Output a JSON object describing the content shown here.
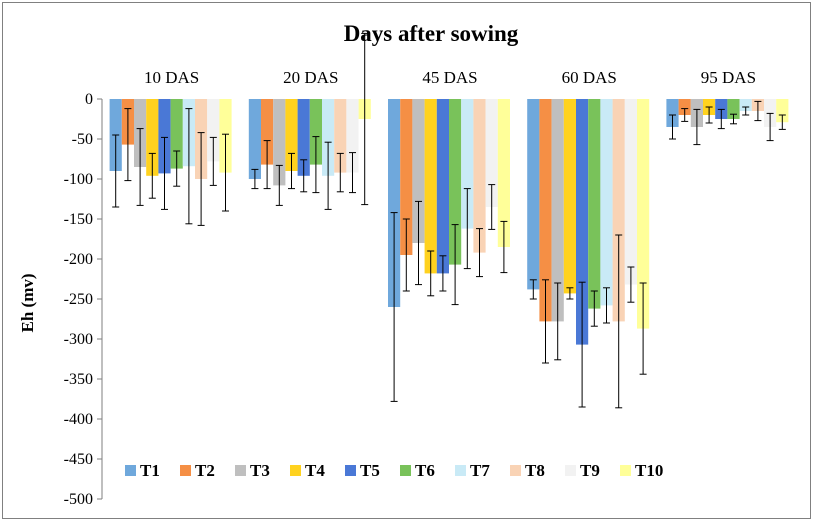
{
  "chart_data": {
    "type": "bar",
    "title": "Days after sowing",
    "ylabel": "Eh (mv)",
    "xlabel": "",
    "ylim": [
      -500,
      0
    ],
    "yticks": [
      0,
      -50,
      -100,
      -150,
      -200,
      -250,
      -300,
      -350,
      -400,
      -450,
      -500
    ],
    "category_position": "top",
    "legend_position": "bottom-left",
    "grid": false,
    "categories": [
      "10 DAS",
      "20 DAS",
      "45 DAS",
      "60 DAS",
      "95 DAS"
    ],
    "series": [
      {
        "name": "T1",
        "color": "#6FA8DC",
        "values": [
          -90,
          -100,
          -260,
          -238,
          -35
        ],
        "errors": [
          45,
          12,
          118,
          12,
          15
        ]
      },
      {
        "name": "T2",
        "color": "#F58F45",
        "values": [
          -57,
          -82,
          -195,
          -278,
          -20
        ],
        "errors": [
          45,
          30,
          45,
          52,
          8
        ]
      },
      {
        "name": "T3",
        "color": "#BFBFBF",
        "values": [
          -85,
          -108,
          -180,
          -278,
          -35
        ],
        "errors": [
          48,
          25,
          52,
          48,
          22
        ]
      },
      {
        "name": "T4",
        "color": "#FFD21F",
        "values": [
          -96,
          -90,
          -218,
          -243,
          -20
        ],
        "errors": [
          28,
          22,
          28,
          7,
          10
        ]
      },
      {
        "name": "T5",
        "color": "#4A78D6",
        "values": [
          -93,
          -96,
          -218,
          -307,
          -25
        ],
        "errors": [
          45,
          20,
          22,
          78,
          12
        ]
      },
      {
        "name": "T6",
        "color": "#79C25A",
        "values": [
          -87,
          -82,
          -207,
          -262,
          -25
        ],
        "errors": [
          22,
          35,
          50,
          22,
          6
        ]
      },
      {
        "name": "T7",
        "color": "#C9EAF6",
        "values": [
          -84,
          -96,
          -162,
          -258,
          -15
        ],
        "errors": [
          72,
          42,
          50,
          22,
          5
        ]
      },
      {
        "name": "T8",
        "color": "#F9D3B5",
        "values": [
          -100,
          -92,
          -192,
          -278,
          -15
        ],
        "errors": [
          58,
          24,
          30,
          108,
          12
        ]
      },
      {
        "name": "T9",
        "color": "#F2F2F2",
        "values": [
          -78,
          -92,
          -135,
          -232,
          -35
        ],
        "errors": [
          30,
          25,
          28,
          22,
          17
        ]
      },
      {
        "name": "T10",
        "color": "#FFFF99",
        "values": [
          -92,
          -25,
          -185,
          -287,
          -29
        ],
        "errors": [
          48,
          107,
          32,
          57,
          9
        ]
      }
    ]
  }
}
